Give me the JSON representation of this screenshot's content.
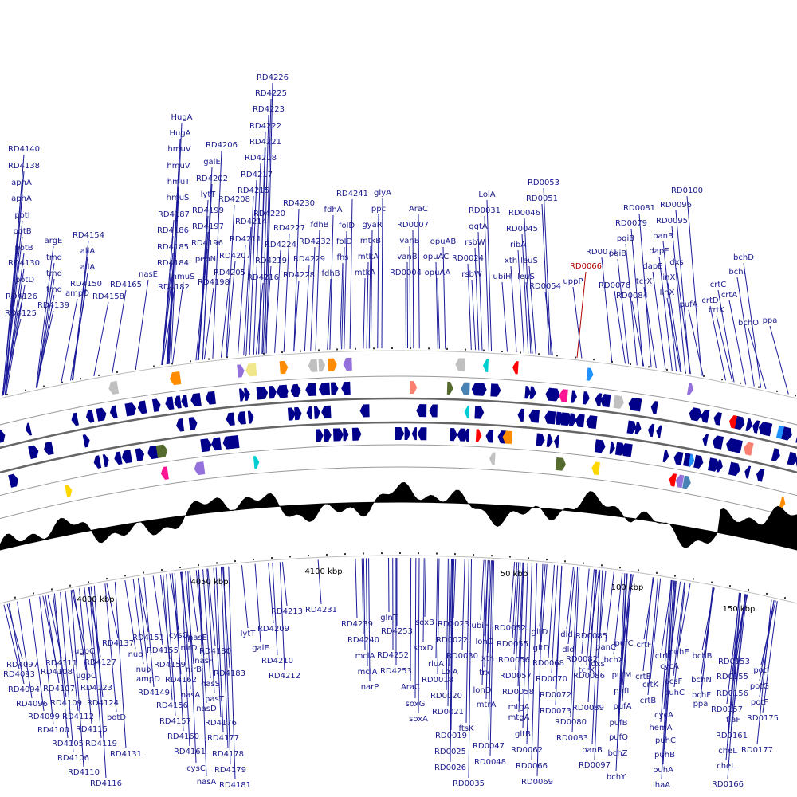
{
  "top_labels": [
    "RD4140",
    "RD4138",
    "aphA",
    "aphA",
    "potI",
    "potB",
    "potB",
    "RD4130",
    "potD",
    "RD4126",
    "RD4125",
    "argE",
    "tmd",
    "tmd",
    "tmd",
    "RD4139",
    "RD4154",
    "allA",
    "allA",
    "RD4150",
    "ampD",
    "RD4158",
    "RD4165",
    "nasE",
    "HugA",
    "HugA",
    "hmuV",
    "hmuV",
    "hmuT",
    "hmuS",
    "RD4187",
    "RD4186",
    "RD4185",
    "RD4184",
    "hmuS",
    "RD4182",
    "RD4206",
    "galE",
    "RD4202",
    "lytT",
    "RD4199",
    "RD4197",
    "RD4196",
    "pepN",
    "RD4198",
    "RD4205",
    "RD4207",
    "RD4211",
    "RD4208",
    "RD4215",
    "RD4214",
    "RD4216",
    "RD4219",
    "RD4224",
    "RD4220",
    "RD4217",
    "RD4218",
    "RD4221",
    "RD4222",
    "RD4223",
    "RD4225",
    "RD4226",
    "RD4227",
    "RD4230",
    "RD4228",
    "RD4229",
    "RD4232",
    "fdhB",
    "fdhA",
    "RD4241",
    "folD",
    "folD",
    "fhs",
    "fdhB",
    "glyA",
    "ppc",
    "gyaR",
    "mtkB",
    "mtkA",
    "mtkA",
    "AraC",
    "RD0007",
    "vanB",
    "vanB",
    "RD0004",
    "opuAB",
    "opuAC",
    "opuAA",
    "LolA",
    "RD0031",
    "ggtA",
    "rsbW",
    "RD0024",
    "rsbW",
    "RD0053",
    "RD0051",
    "RD0046",
    "RD0045",
    "ribA",
    "xth",
    "leuS",
    "ubiH",
    "leuS",
    "RD0054",
    "uppP",
    "RD0071",
    "RD0100",
    "RD0096",
    "RD0081",
    "RD0095",
    "RD0079",
    "panB",
    "pqiB",
    "dapE",
    "pqiB",
    "dxs",
    "dapE",
    "tcrX",
    "RD0076",
    "linX",
    "linX",
    "RD0084",
    "pufA",
    "bchD",
    "bchI",
    "crtC",
    "crtA",
    "crtD",
    "crtK",
    "bchO",
    "ppa"
  ],
  "highlight_label": "RD0066",
  "scale_labels": [
    "4000 kbp",
    "4050 kbp",
    "4100 kbp",
    "50 kbp",
    "100 kbp",
    "150 kbp"
  ],
  "bottom_labels": [
    "RD4097",
    "RD4093",
    "RD4094",
    "RD4096",
    "RD4099",
    "RD4100",
    "RD4105",
    "RD4106",
    "RD4110",
    "RD4116",
    "RD4111",
    "RD4108",
    "RD4107",
    "RD4109",
    "RD4112",
    "RD4115",
    "RD4119",
    "RD4131",
    "ugpC",
    "ugpC",
    "RD4127",
    "RD4123",
    "RD4124",
    "potD",
    "RD4137",
    "RD4151",
    "nuo",
    "nuo",
    "ampD",
    "RD4149",
    "RD4156",
    "RD4157",
    "RD4160",
    "RD4161",
    "cysC",
    "nasA",
    "cysG",
    "RD4155",
    "nirD",
    "RD4159",
    "nirB",
    "RD4162",
    "nasA",
    "nasE",
    "RD4180",
    "nasF",
    "RD4183",
    "nasS",
    "nasT",
    "nasD",
    "RD4176",
    "RD4177",
    "RD4178",
    "RD4179",
    "RD4181",
    "lytT",
    "RD4209",
    "RD4213",
    "RD4231",
    "galE",
    "RD4210",
    "RD4212",
    "RD4239",
    "RD4240",
    "mclA",
    "mclA",
    "narP",
    "glnT",
    "RD4253",
    "RD4252",
    "RD4253",
    "soxB",
    "soxD",
    "rluA",
    "RD0023",
    "RD0022",
    "RD0030",
    "LolA",
    "RD0018",
    "AraC",
    "RD0020",
    "soxG",
    "RD0021",
    "soxA",
    "RD0019",
    "ftsK",
    "RD0025",
    "RD0026",
    "RD0035",
    "ubiH",
    "lonD",
    "xth",
    "trx",
    "lonD",
    "mtrA",
    "RD0047",
    "RD0048",
    "RD0052",
    "RD0055",
    "RD0056",
    "RD0057",
    "RD0058",
    "mtgA",
    "mtgA",
    "gltB",
    "RD0062",
    "RD0066",
    "RD0069",
    "gltD",
    "gltD",
    "RD0068",
    "RD0070",
    "RD0072",
    "RD0073",
    "RD0080",
    "RD0083",
    "dld",
    "dld",
    "RD0082",
    "tcrX",
    "RD0086",
    "RD0089",
    "panB",
    "RD0097",
    "RD0085",
    "panC",
    "dxs",
    "bchX",
    "pufC",
    "pufM",
    "pufL",
    "pufA",
    "pufB",
    "pufQ",
    "bchZ",
    "bchY",
    "crtF",
    "crtE",
    "crtK",
    "crtB",
    "ctrI",
    "cycA",
    "acsF",
    "cycA",
    "hemA",
    "puhC",
    "puhB",
    "puhA",
    "lhaA",
    "puhE",
    "puhC",
    "bchB",
    "bchN",
    "bchF",
    "ppa",
    "RD0153",
    "RD0155",
    "RD0156",
    "RD0157",
    "flaF",
    "RD0161",
    "cheL",
    "cheL",
    "RD0166",
    "potI",
    "potG",
    "potF",
    "RD0175",
    "RD0177"
  ]
}
